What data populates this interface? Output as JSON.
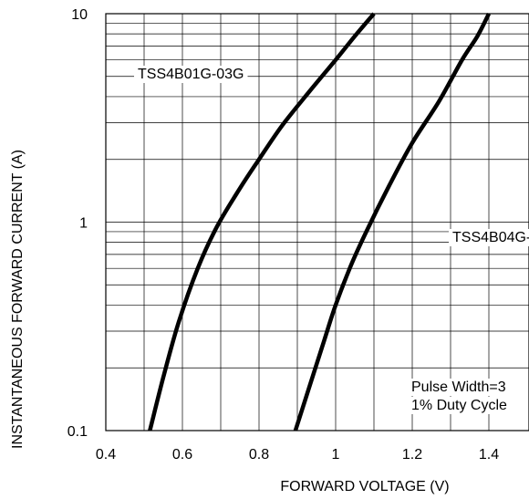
{
  "chart_data": {
    "type": "line",
    "xlabel": "FORWARD VOLTAGE (V)",
    "ylabel": "INSTANTANEOUS FORWARD CURRENT (A)",
    "xlim": [
      0.4,
      1.5
    ],
    "ylim": [
      0.1,
      10
    ],
    "y_scale": "log",
    "grid": true,
    "x_ticks": [
      0.4,
      0.6,
      0.8,
      1,
      1.2,
      1.4
    ],
    "x_tick_labels": [
      "0.4",
      "0.6",
      "0.8",
      "1",
      "1.2",
      "1.4"
    ],
    "y_ticks": [
      0.1,
      1,
      10
    ],
    "y_tick_labels": [
      "0.1",
      "1",
      "10"
    ],
    "series": [
      {
        "name": "TSS4B01G-03G",
        "points": [
          [
            0.515,
            0.1
          ],
          [
            0.55,
            0.18
          ],
          [
            0.59,
            0.33
          ],
          [
            0.64,
            0.6
          ],
          [
            0.69,
            0.95
          ],
          [
            0.75,
            1.45
          ],
          [
            0.8,
            2.0
          ],
          [
            0.86,
            2.9
          ],
          [
            0.93,
            4.2
          ],
          [
            1.0,
            6.0
          ],
          [
            1.05,
            7.8
          ],
          [
            1.1,
            10
          ]
        ]
      },
      {
        "name": "TSS4B04G-",
        "points": [
          [
            0.895,
            0.1
          ],
          [
            0.935,
            0.17
          ],
          [
            0.97,
            0.27
          ],
          [
            1.0,
            0.4
          ],
          [
            1.04,
            0.62
          ],
          [
            1.08,
            0.9
          ],
          [
            1.14,
            1.5
          ],
          [
            1.2,
            2.4
          ],
          [
            1.27,
            3.8
          ],
          [
            1.33,
            6.0
          ],
          [
            1.37,
            7.8
          ],
          [
            1.4,
            10
          ]
        ]
      }
    ],
    "annotations": [
      "TSS4B01G-03G",
      "TSS4B04G-",
      "Pulse Width=3",
      "1% Duty Cycle"
    ]
  }
}
